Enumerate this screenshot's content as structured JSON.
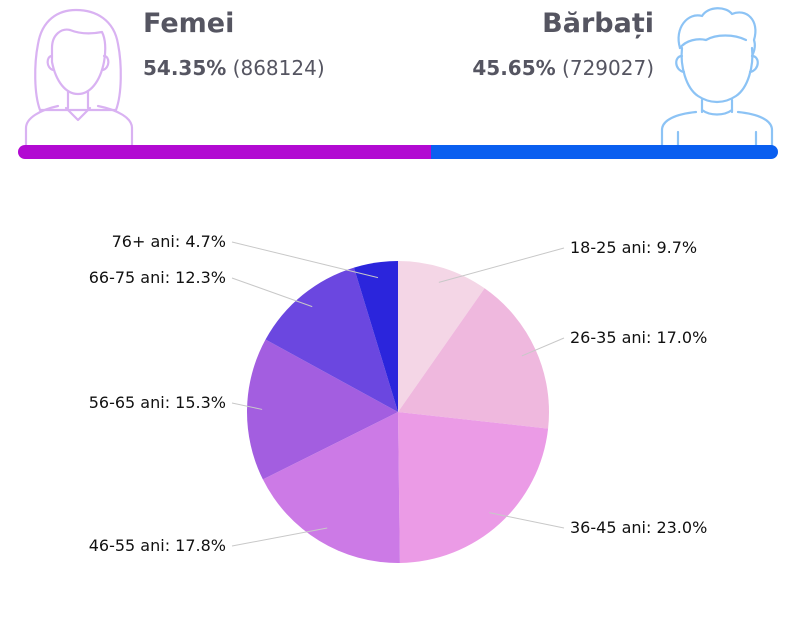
{
  "female": {
    "title": "Femei",
    "percent": "54.35%",
    "count": "(868124)",
    "share": 54.35,
    "color": "#b20ad2",
    "icon": "woman-avatar-icon",
    "icon_color": "#d9b2f2"
  },
  "male": {
    "title": "Bărbați",
    "percent": "45.65%",
    "count": "(729027)",
    "share": 45.65,
    "color": "#0a5ff0",
    "icon": "man-avatar-icon",
    "icon_color": "#8cc3f5"
  },
  "chart_data": {
    "type": "pie",
    "categories": [
      "18-25 ani",
      "26-35 ani",
      "36-45 ani",
      "46-55 ani",
      "56-65 ani",
      "66-75 ani",
      "76+ ani"
    ],
    "values": [
      9.7,
      17.0,
      23.0,
      17.8,
      15.3,
      12.3,
      4.7
    ],
    "labels": [
      "18-25 ani: 9.7%",
      "26-35 ani: 17.0%",
      "36-45 ani: 23.0%",
      "46-55 ani: 17.8%",
      "56-65 ani: 15.3%",
      "66-75 ani: 12.3%",
      "76+ ani: 4.7%"
    ],
    "colors": [
      "#f4d6e6",
      "#efb8de",
      "#eb9be6",
      "#cc7ae6",
      "#a35ee0",
      "#6b47e0",
      "#2b25dc"
    ],
    "start": "12 o'clock, clockwise"
  }
}
